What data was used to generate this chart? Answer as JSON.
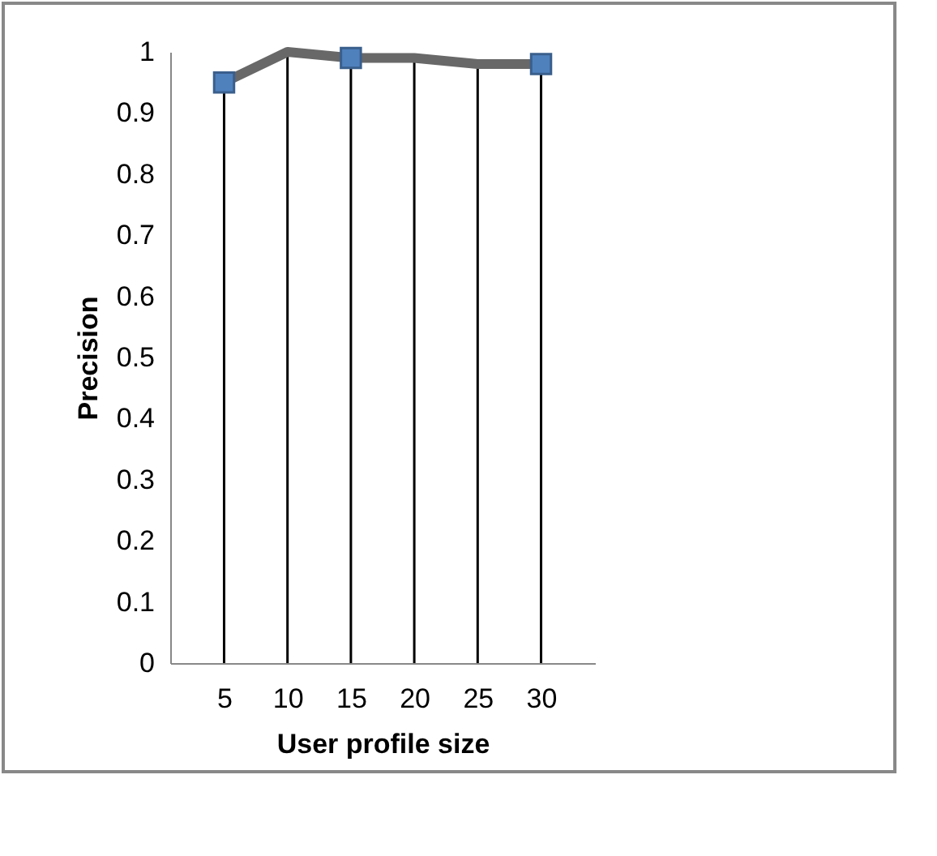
{
  "chart_data": {
    "type": "line",
    "xlabel": "User profile size",
    "ylabel": "Precision",
    "categories": [
      "5",
      "10",
      "15",
      "20",
      "25",
      "30"
    ],
    "series": [
      {
        "type": "line",
        "color": "#686868",
        "marker": "none",
        "values": [
          0.95,
          1.0,
          0.99,
          0.99,
          0.98,
          0.98
        ]
      },
      {
        "type": "scatter",
        "color": "#4f81bd",
        "marker": "square",
        "values": [
          0.95,
          null,
          0.99,
          null,
          null,
          0.98
        ]
      }
    ],
    "ylim": [
      0,
      1
    ],
    "yticks": [
      0,
      0.1,
      0.2,
      0.3,
      0.4,
      0.5,
      0.6,
      0.7,
      0.8,
      0.9,
      1
    ],
    "grid": "x"
  }
}
